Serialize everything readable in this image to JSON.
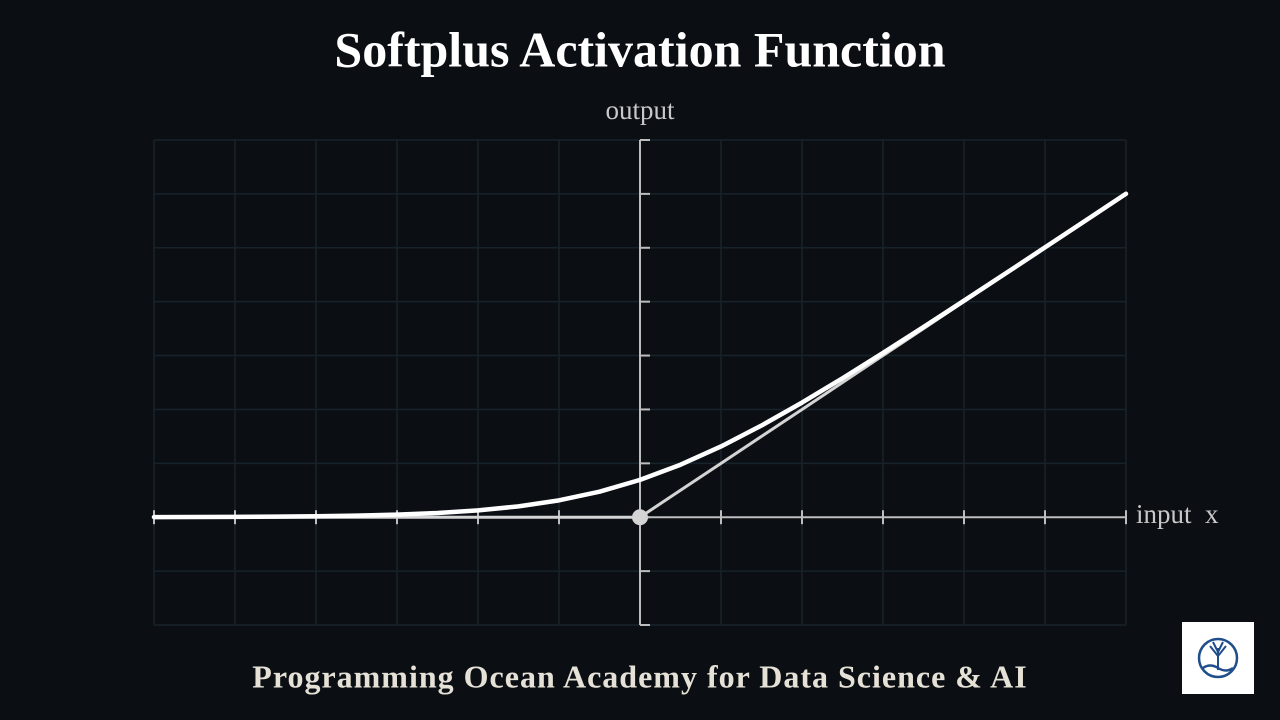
{
  "chart_data": {
    "type": "line",
    "title": "Softplus Activation Function",
    "y_label": "output",
    "x_label": "input  x",
    "footer": "Programming Ocean Academy for Data Science & AI",
    "x": [
      -6,
      -5.5,
      -5,
      -4.5,
      -4,
      -3.5,
      -3,
      -2.5,
      -2,
      -1.5,
      -1,
      -0.5,
      0,
      0.5,
      1,
      1.5,
      2,
      2.5,
      3,
      3.5,
      4,
      4.5,
      5,
      5.5,
      6
    ],
    "series": [
      {
        "color": "#d4d4d4",
        "values": [
          0,
          0,
          0,
          0,
          0,
          0,
          0,
          0,
          0,
          0,
          0,
          0,
          0,
          0.5,
          1,
          1.5,
          2,
          2.5,
          3,
          3.5,
          4,
          4.5,
          5,
          5.5,
          6
        ]
      },
      {
        "color": "#ffffff",
        "values": [
          0.0025,
          0.0041,
          0.0067,
          0.011,
          0.0181,
          0.0298,
          0.0486,
          0.0789,
          0.1269,
          0.2014,
          0.3133,
          0.4741,
          0.6931,
          0.9741,
          1.3133,
          1.7014,
          2.1269,
          2.5789,
          3.0486,
          3.5298,
          4.0181,
          4.511,
          5.0067,
          5.5041,
          6.0025
        ]
      }
    ],
    "xlim": [
      -6,
      6
    ],
    "ylim": [
      -2,
      7
    ],
    "xticks": [
      -6,
      -5,
      -4,
      -3,
      -2,
      -1,
      0,
      1,
      2,
      3,
      4,
      5,
      6
    ],
    "yticks": [
      -2,
      -1,
      0,
      1,
      2,
      3,
      4,
      5,
      6,
      7
    ],
    "grid": true
  }
}
